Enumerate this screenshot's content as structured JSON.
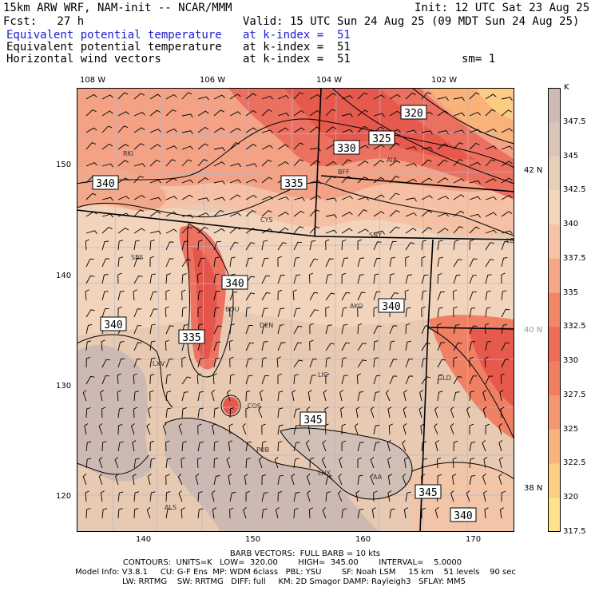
{
  "header": {
    "model": "15km ARW WRF, NAM-init -- NCAR/MMM",
    "init": "Init: 12 UTC Sat 23 Aug 25",
    "fcst": "Fcst:   27 h",
    "valid": "Valid: 15 UTC Sun 24 Aug 25 (09 MDT Sun 24 Aug 25)",
    "field1_name": "Equivalent potential temperature",
    "field1_level": "at k-index =  51",
    "field2_name": "Equivalent potential temperature",
    "field2_level": "at k-index =  51",
    "field3_name": "Horizontal wind vectors",
    "field3_level": "at k-index =  51",
    "smooth": "sm= 1"
  },
  "top_ticks": [
    "108 W",
    "106 W",
    "104 W",
    "102 W"
  ],
  "lat_ticks": [
    "42 N",
    "40 N",
    "38 N"
  ],
  "left_ticks": [
    "150",
    "140",
    "130",
    "120"
  ],
  "bottom_ticks": [
    "140",
    "150",
    "160",
    "170"
  ],
  "cities": [
    "RKI",
    "BFF",
    "AIA",
    "CYS",
    "SNY",
    "LBF",
    "SBS",
    "BOU",
    "DEN",
    "AKO",
    "LXV",
    "LIC",
    "GLD",
    "COS",
    "PUB",
    "LHX",
    "AA",
    "ALS"
  ],
  "contour_labels": [
    "320",
    "325",
    "330",
    "335",
    "340",
    "340",
    "335",
    "340",
    "340",
    "345",
    "345",
    "340"
  ],
  "legend": {
    "unit": "K",
    "labels": [
      "347.5",
      "345",
      "342.5",
      "340",
      "337.5",
      "335",
      "332.5",
      "330",
      "327.5",
      "325",
      "322.5",
      "320",
      "317.5"
    ],
    "colors": [
      "#ccbcb4",
      "#d8c4b8",
      "#e6ceb8",
      "#f2d8b8",
      "#f6c4a4",
      "#f4a888",
      "#f08868",
      "#ec6c58",
      "#f07e60",
      "#f49870",
      "#f8b47c",
      "#fcce84",
      "#ffe28c"
    ]
  },
  "footer": {
    "barb": "BARB VECTORS:  FULL BARB = 10 kts",
    "contours": "CONTOURS:  UNITS=K   LOW=  320.00        HIGH=  345.00        INTERVAL=    5.0000",
    "model_info": "Model Info: V3.8.1     CU: G-F Ens  MP: WDM 6class   PBL: YSU        SF: Noah LSM     15 km    51 levels    90 sec",
    "model_info2": "LW: RRTMG    SW: RRTMG   DIFF: full     KM: 2D Smagor DAMP: Rayleigh3   SFLAY: MM5"
  }
}
